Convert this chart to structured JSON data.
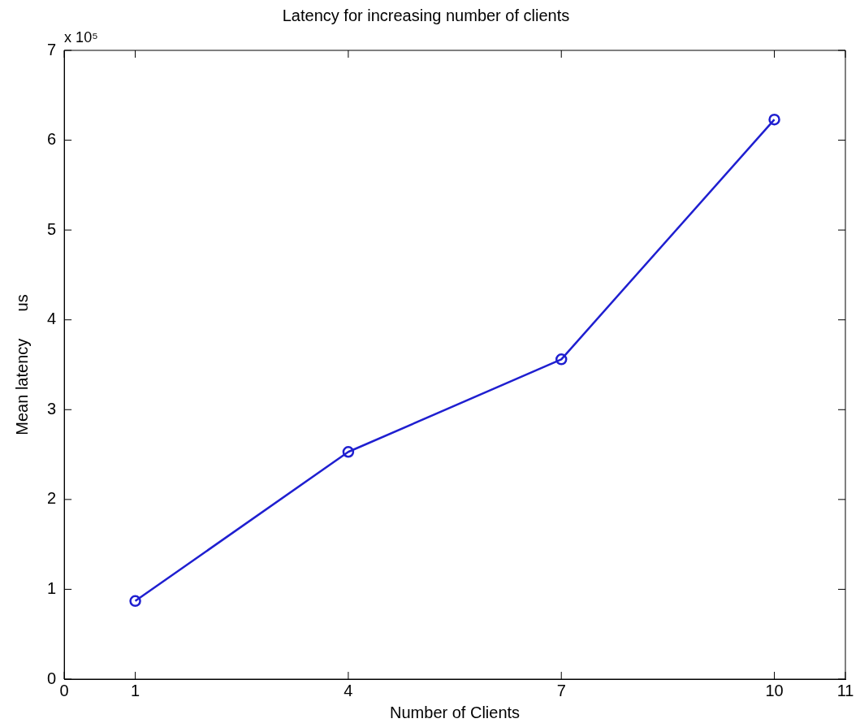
{
  "chart_data": {
    "type": "line",
    "title": "Latency for increasing number of clients",
    "xlabel": "Number of Clients",
    "ylabel": "Mean latency      us",
    "x": [
      1,
      4,
      7,
      10
    ],
    "series": [
      {
        "color": "#1f1fd0",
        "values": [
          0.87,
          2.53,
          3.56,
          6.23
        ]
      }
    ],
    "xlim": [
      0,
      11
    ],
    "xticks": [
      0,
      1,
      4,
      7,
      10,
      11
    ],
    "ylim": [
      0,
      7
    ],
    "yticks": [
      0,
      1,
      2,
      3,
      4,
      5,
      6,
      7
    ],
    "annotations": [
      "x 10⁵"
    ],
    "marker": "circle",
    "line_style": "solid",
    "grid": false,
    "legend": false
  }
}
